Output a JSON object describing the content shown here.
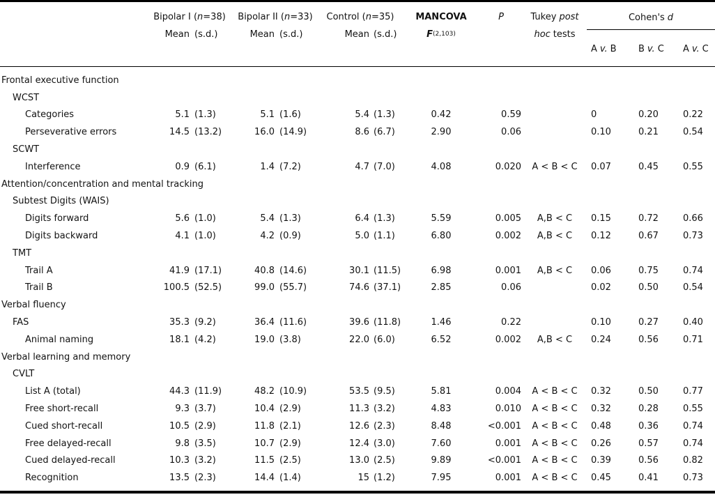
{
  "table": {
    "header": {
      "mean_label": "Mean",
      "sd_label": "(s.d.)",
      "groups": [
        {
          "pre": "Bipolar I (",
          "n": "n",
          "post": "=38)"
        },
        {
          "pre": "Bipolar II (",
          "n": "n",
          "post": "=33)"
        },
        {
          "pre": "Control (",
          "n": "n",
          "post": "=35)"
        }
      ],
      "mancova": "MANCOVA",
      "f": "F",
      "f_sub": "(2,103)",
      "p": "P",
      "tukey_pre": "Tukey",
      "tukey_it1": "post",
      "tukey_it2": "hoc",
      "tukey_post": "tests",
      "cohens_pre": "Cohen's",
      "cohens_it": "d",
      "contrasts": [
        {
          "l": "A",
          "v": "v.",
          "r": "B"
        },
        {
          "l": "B",
          "v": "v.",
          "r": "C"
        },
        {
          "l": "A",
          "v": "v.",
          "r": "C"
        }
      ]
    },
    "rows": [
      {
        "label": "Frontal executive function",
        "indent": 0
      },
      {
        "label": "WCST",
        "indent": 1
      },
      {
        "label": "Categories",
        "indent": 2,
        "cells": [
          "5.1",
          "(1.3)",
          "5.1",
          "(1.6)",
          "5.4",
          "(1.3)",
          "0.42",
          "0.59",
          "",
          "0",
          "0.20",
          "0.22"
        ]
      },
      {
        "label": "Perseverative errors",
        "indent": 2,
        "cells": [
          "14.5",
          "(13.2)",
          "16.0",
          "(14.9)",
          "8.6",
          "(6.7)",
          "2.90",
          "0.06",
          "",
          "0.10",
          "0.21",
          "0.54"
        ]
      },
      {
        "label": "SCWT",
        "indent": 1
      },
      {
        "label": "Interference",
        "indent": 2,
        "cells": [
          "0.9",
          "(6.1)",
          "1.4",
          "(7.2)",
          "4.7",
          "(7.0)",
          "4.08",
          "0.020",
          "A < B < C",
          "0.07",
          "0.45",
          "0.55"
        ]
      },
      {
        "label": "Attention/concentration and mental tracking",
        "indent": 0
      },
      {
        "label": "Subtest Digits (WAIS)",
        "indent": 1
      },
      {
        "label": "Digits forward",
        "indent": 2,
        "cells": [
          "5.6",
          "(1.0)",
          "5.4",
          "(1.3)",
          "6.4",
          "(1.3)",
          "5.59",
          "0.005",
          "A,B < C",
          "0.15",
          "0.72",
          "0.66"
        ]
      },
      {
        "label": "Digits backward",
        "indent": 2,
        "cells": [
          "4.1",
          "(1.0)",
          "4.2",
          "(0.9)",
          "5.0",
          "(1.1)",
          "6.80",
          "0.002",
          "A,B < C",
          "0.12",
          "0.67",
          "0.73"
        ]
      },
      {
        "label": "TMT",
        "indent": 1
      },
      {
        "label": "Trail A",
        "indent": 2,
        "cells": [
          "41.9",
          "(17.1)",
          "40.8",
          "(14.6)",
          "30.1",
          "(11.5)",
          "6.98",
          "0.001",
          "A,B < C",
          "0.06",
          "0.75",
          "0.74"
        ]
      },
      {
        "label": "Trail B",
        "indent": 2,
        "cells": [
          "100.5",
          "(52.5)",
          "99.0",
          "(55.7)",
          "74.6",
          "(37.1)",
          "2.85",
          "0.06",
          "",
          "0.02",
          "0.50",
          "0.54"
        ]
      },
      {
        "label": "Verbal fluency",
        "indent": 0
      },
      {
        "label": "FAS",
        "indent": 1,
        "cells": [
          "35.3",
          "(9.2)",
          "36.4",
          "(11.6)",
          "39.6",
          "(11.8)",
          "1.46",
          "0.22",
          "",
          "0.10",
          "0.27",
          "0.40"
        ]
      },
      {
        "label": "Animal naming",
        "indent": 2,
        "cells": [
          "18.1",
          "(4.2)",
          "19.0",
          "(3.8)",
          "22.0",
          "(6.0)",
          "6.52",
          "0.002",
          "A,B < C",
          "0.24",
          "0.56",
          "0.71"
        ]
      },
      {
        "label": "Verbal learning and memory",
        "indent": 0
      },
      {
        "label": "CVLT",
        "indent": 1
      },
      {
        "label": "List A (total)",
        "indent": 2,
        "cells": [
          "44.3",
          "(11.9)",
          "48.2",
          "(10.9)",
          "53.5",
          "(9.5)",
          "5.81",
          "0.004",
          "A < B < C",
          "0.32",
          "0.50",
          "0.77"
        ]
      },
      {
        "label": "Free short-recall",
        "indent": 2,
        "cells": [
          "9.3",
          "(3.7)",
          "10.4",
          "(2.9)",
          "11.3",
          "(3.2)",
          "4.83",
          "0.010",
          "A < B < C",
          "0.32",
          "0.28",
          "0.55"
        ]
      },
      {
        "label": "Cued short-recall",
        "indent": 2,
        "cells": [
          "10.5",
          "(2.9)",
          "11.8",
          "(2.1)",
          "12.6",
          "(2.3)",
          "8.48",
          "<0.001",
          "A < B < C",
          "0.48",
          "0.36",
          "0.74"
        ]
      },
      {
        "label": "Free delayed-recall",
        "indent": 2,
        "cells": [
          "9.8",
          "(3.5)",
          "10.7",
          "(2.9)",
          "12.4",
          "(3.0)",
          "7.60",
          "0.001",
          "A < B < C",
          "0.26",
          "0.57",
          "0.74"
        ]
      },
      {
        "label": "Cued delayed-recall",
        "indent": 2,
        "cells": [
          "10.3",
          "(3.2)",
          "11.5",
          "(2.5)",
          "13.0",
          "(2.5)",
          "9.89",
          "<0.001",
          "A < B < C",
          "0.39",
          "0.56",
          "0.82"
        ]
      },
      {
        "label": "Recognition",
        "indent": 2,
        "cells": [
          "13.5",
          "(2.3)",
          "14.4",
          "(1.4)",
          "15",
          "(1.2)",
          "7.95",
          "0.001",
          "A < B < C",
          "0.45",
          "0.41",
          "0.73"
        ]
      }
    ]
  }
}
